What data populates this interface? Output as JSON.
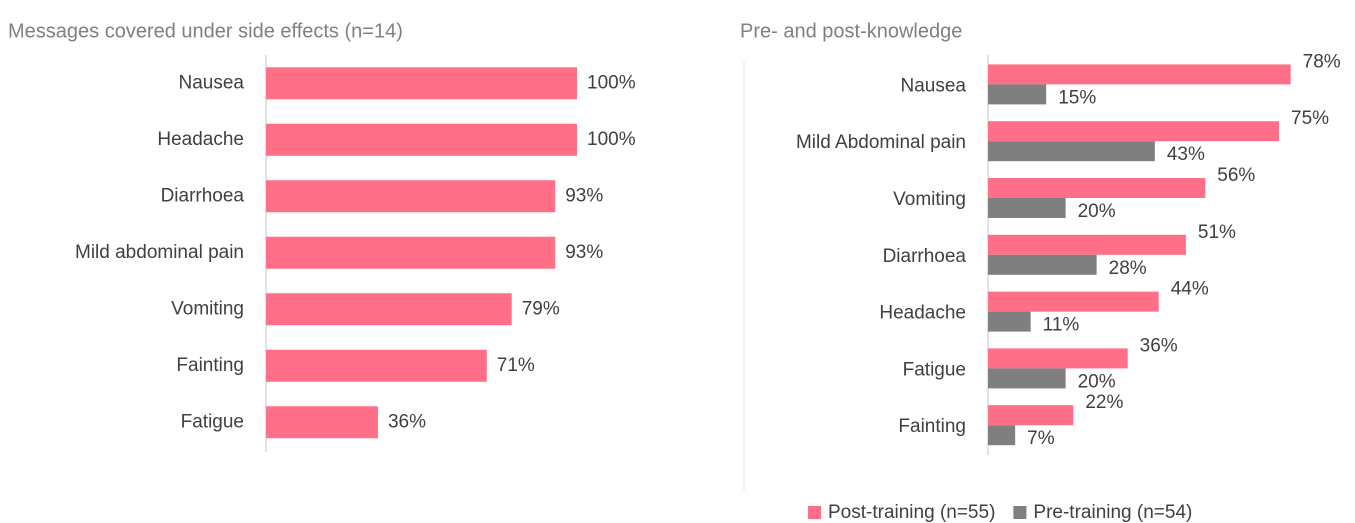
{
  "chart_data": [
    {
      "type": "bar",
      "title": "Messages covered under side effects (n=14)",
      "categories": [
        "Nausea",
        "Headache",
        "Diarrhoea",
        "Mild abdominal pain",
        "Vomiting",
        "Fainting",
        "Fatigue"
      ],
      "values": [
        100,
        100,
        93,
        93,
        79,
        71,
        36
      ],
      "value_labels": [
        "100%",
        "100%",
        "93%",
        "93%",
        "79%",
        "71%",
        "36%"
      ],
      "color": "#ff6f87",
      "xlim": [
        0,
        100
      ]
    },
    {
      "type": "grouped-bar",
      "title": "Pre- and post-knowledge",
      "categories": [
        "Nausea",
        "Mild Abdominal pain",
        "Vomiting",
        "Diarrhoea",
        "Headache",
        "Fatigue",
        "Fainting"
      ],
      "series": [
        {
          "name": "Post-training (n=55)",
          "color": "#ff6f87",
          "values": [
            78,
            75,
            56,
            51,
            44,
            36,
            22
          ],
          "value_labels": [
            "78%",
            "75%",
            "56%",
            "51%",
            "44%",
            "36%",
            "22%"
          ]
        },
        {
          "name": "Pre-training (n=54)",
          "color": "#7f7f7f",
          "values": [
            15,
            43,
            20,
            28,
            11,
            20,
            7
          ],
          "value_labels": [
            "15%",
            "43%",
            "20%",
            "28%",
            "11%",
            "20%",
            "7%"
          ]
        }
      ],
      "xlim": [
        0,
        100
      ],
      "legend": "bottom"
    }
  ]
}
